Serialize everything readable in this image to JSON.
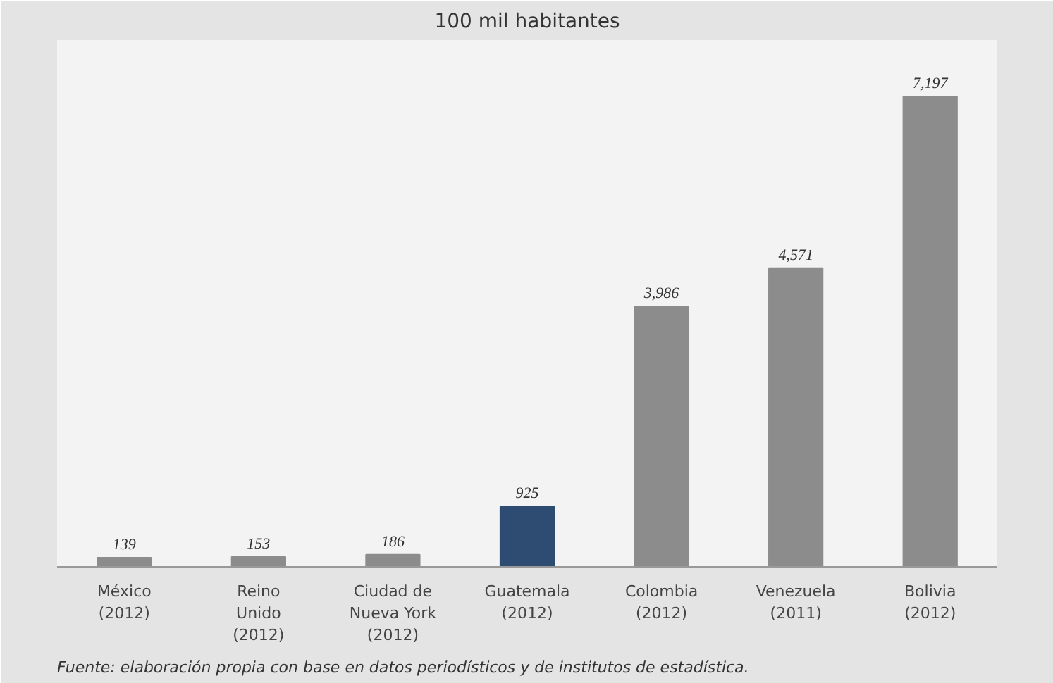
{
  "chart_data": {
    "type": "bar",
    "title": "100 mil habitantes",
    "categories": [
      "México\n(2012)",
      "Reino\nUnido\n(2012)",
      "Ciudad de\nNueva York\n(2012)",
      "Guatemala\n(2012)",
      "Colombia\n(2012)",
      "Venezuela\n(2011)",
      "Bolivia\n(2012)"
    ],
    "values": [
      139,
      153,
      186,
      925,
      3986,
      4571,
      7197
    ],
    "colors": [
      "#8c8c8c",
      "#8c8c8c",
      "#8c8c8c",
      "#2e4b72",
      "#8c8c8c",
      "#8c8c8c",
      "#8c8c8c"
    ],
    "value_labels": [
      "139",
      "153",
      "186",
      "925",
      "3,986",
      "4,571",
      "7,197"
    ],
    "annotations": [
      "Fuente: elaboración propia con base en datos periodísticos y de institutos de estadística."
    ],
    "grid": false
  }
}
